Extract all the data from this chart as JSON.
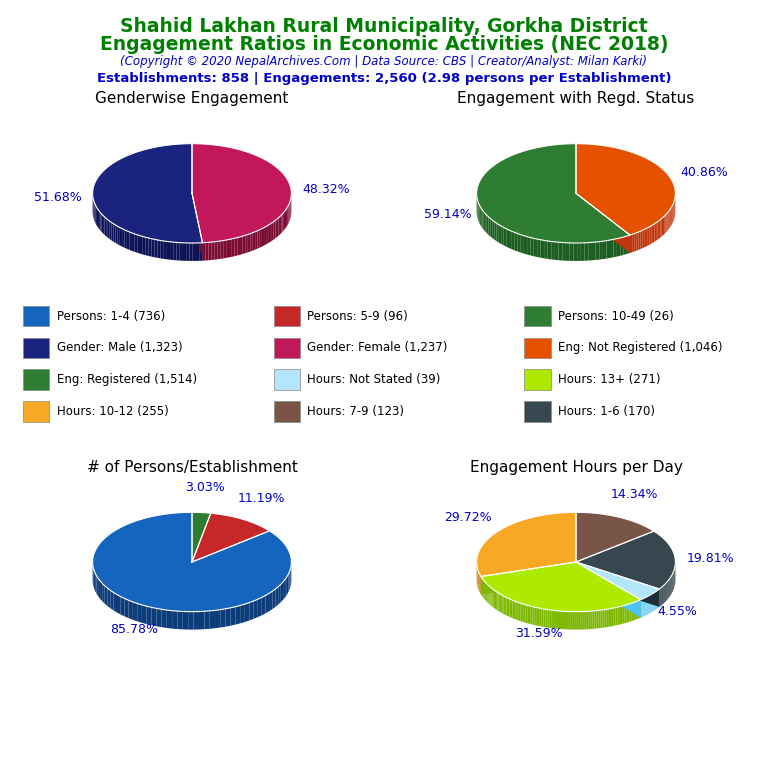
{
  "title_line1": "Shahid Lakhan Rural Municipality, Gorkha District",
  "title_line2": "Engagement Ratios in Economic Activities (NEC 2018)",
  "subtitle": "(Copyright © 2020 NepalArchives.Com | Data Source: CBS | Creator/Analyst: Milan Karki)",
  "stats_line": "Establishments: 858 | Engagements: 2,560 (2.98 persons per Establishment)",
  "title_color": "#008000",
  "subtitle_color": "#0000CD",
  "stats_color": "#0000CD",
  "pie1_title": "Genderwise Engagement",
  "pie1_values": [
    51.68,
    48.32
  ],
  "pie1_colors": [
    "#1a237e",
    "#c2185b"
  ],
  "pie1_dark_colors": [
    "#0d1257",
    "#7b0b33"
  ],
  "pie1_labels": [
    "51.68%",
    "48.32%"
  ],
  "pie1_startangle": 90,
  "pie2_title": "Engagement with Regd. Status",
  "pie2_values": [
    59.14,
    40.86
  ],
  "pie2_colors": [
    "#2e7d32",
    "#e65100"
  ],
  "pie2_dark_colors": [
    "#1b5e20",
    "#bf360c"
  ],
  "pie2_labels": [
    "59.14%",
    "40.86%"
  ],
  "pie2_startangle": 90,
  "pie3_title": "# of Persons/Establishment",
  "pie3_values": [
    85.78,
    11.19,
    3.03
  ],
  "pie3_colors": [
    "#1565c0",
    "#c62828",
    "#2e7d32"
  ],
  "pie3_dark_colors": [
    "#0d3c7a",
    "#7f0000",
    "#1b5e20"
  ],
  "pie3_labels": [
    "85.78%",
    "11.19%",
    "3.03%"
  ],
  "pie3_startangle": 90,
  "pie4_title": "Engagement Hours per Day",
  "pie4_values": [
    29.72,
    31.59,
    4.55,
    19.81,
    14.34
  ],
  "pie4_colors": [
    "#f9a825",
    "#aeea00",
    "#b3e5fc",
    "#37474f",
    "#795548"
  ],
  "pie4_dark_colors": [
    "#c17900",
    "#7cb800",
    "#4fc3f7",
    "#1c2d35",
    "#4e342e"
  ],
  "pie4_labels": [
    "29.72%",
    "31.59%",
    "4.55%",
    "19.81%",
    "14.34%"
  ],
  "pie4_startangle": 90,
  "legend_items": [
    {
      "label": "Persons: 1-4 (736)",
      "color": "#1565c0"
    },
    {
      "label": "Persons: 5-9 (96)",
      "color": "#c62828"
    },
    {
      "label": "Persons: 10-49 (26)",
      "color": "#2e7d32"
    },
    {
      "label": "Gender: Male (1,323)",
      "color": "#1a237e"
    },
    {
      "label": "Gender: Female (1,237)",
      "color": "#c2185b"
    },
    {
      "label": "Eng: Not Registered (1,046)",
      "color": "#e65100"
    },
    {
      "label": "Eng: Registered (1,514)",
      "color": "#2e7d32"
    },
    {
      "label": "Hours: Not Stated (39)",
      "color": "#b3e5fc"
    },
    {
      "label": "Hours: 13+ (271)",
      "color": "#aeea00"
    },
    {
      "label": "Hours: 10-12 (255)",
      "color": "#f9a825"
    },
    {
      "label": "Hours: 7-9 (123)",
      "color": "#795548"
    },
    {
      "label": "Hours: 1-6 (170)",
      "color": "#37474f"
    }
  ],
  "label_color": "#0000CD",
  "background_color": "#FFFFFF"
}
